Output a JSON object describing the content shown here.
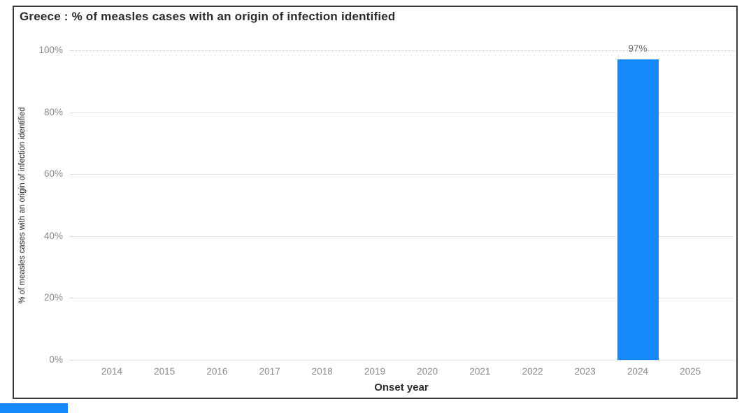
{
  "chart_data": {
    "type": "bar",
    "title": "Greece : % of measles cases with an origin of infection identified",
    "xlabel": "Onset year",
    "ylabel": "% of measles cases with an origin of infection identified",
    "categories": [
      "2014",
      "2015",
      "2016",
      "2017",
      "2018",
      "2019",
      "2020",
      "2021",
      "2022",
      "2023",
      "2024",
      "2025"
    ],
    "values": [
      null,
      null,
      null,
      null,
      null,
      null,
      null,
      null,
      null,
      null,
      97,
      null
    ],
    "data_labels": [
      null,
      null,
      null,
      null,
      null,
      null,
      null,
      null,
      null,
      null,
      "97%",
      null
    ],
    "ylim": [
      0,
      100
    ],
    "yticks": [
      0,
      20,
      40,
      60,
      80,
      100
    ],
    "ytick_labels": [
      "0%",
      "20%",
      "40%",
      "60%",
      "80%",
      "100%"
    ],
    "grid": "horizontal-dotted",
    "legend": "none",
    "bar_color": "#1589fc"
  },
  "colors": {
    "bar": "#1589fc",
    "gridline": "#c8c8c8",
    "tick_label": "#8a8a8a",
    "heading_text": "#2b2b2b",
    "frame_border": "#3b3b3b",
    "bar_value_label": "#6a6a6a",
    "background": "#ffffff",
    "clipped_element": "#1589fc"
  }
}
